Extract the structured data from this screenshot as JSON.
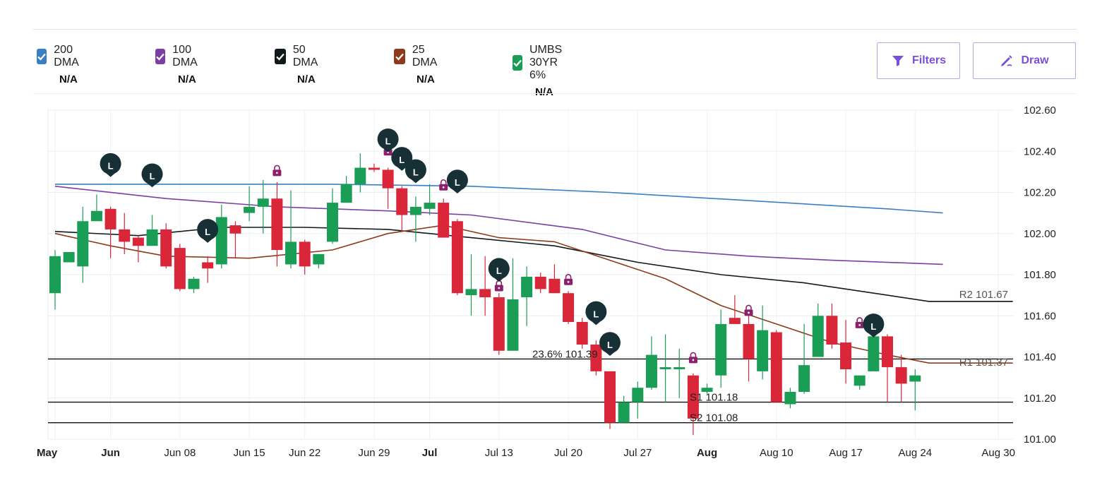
{
  "legend": [
    {
      "label": "200 DMA",
      "value": "N/A",
      "color": "#3a7fc1"
    },
    {
      "label": "100 DMA",
      "value": "N/A",
      "color": "#7b3fa4"
    },
    {
      "label": "50 DMA",
      "value": "N/A",
      "color": "#111a1a"
    },
    {
      "label": "25 DMA",
      "value": "N/A",
      "color": "#8f3a1b"
    },
    {
      "label": "UMBS 30YR 6%",
      "value": "N/A",
      "color": "#1a9e55"
    }
  ],
  "buttons": {
    "filters": "Filters",
    "draw": "Draw"
  },
  "chart_data": {
    "type": "candlestick",
    "ylim": [
      101.0,
      102.6
    ],
    "y_ticks": [
      "102.60",
      "102.40",
      "102.20",
      "102.00",
      "101.80",
      "101.60",
      "101.40",
      "101.20",
      "101.00"
    ],
    "x_labels": [
      {
        "text": "May",
        "bold": true,
        "idx": 0
      },
      {
        "text": "Jun",
        "bold": true,
        "idx": 4
      },
      {
        "text": "Jun 08",
        "bold": false,
        "idx": 9
      },
      {
        "text": "Jun 15",
        "bold": false,
        "idx": 14
      },
      {
        "text": "Jun 22",
        "bold": false,
        "idx": 18
      },
      {
        "text": "Jun 29",
        "bold": false,
        "idx": 23
      },
      {
        "text": "Jul",
        "bold": true,
        "idx": 27
      },
      {
        "text": "Jul 13",
        "bold": false,
        "idx": 32
      },
      {
        "text": "Jul 20",
        "bold": false,
        "idx": 37
      },
      {
        "text": "Jul 27",
        "bold": false,
        "idx": 42
      },
      {
        "text": "Aug",
        "bold": true,
        "idx": 47
      },
      {
        "text": "Aug 10",
        "bold": false,
        "idx": 52
      },
      {
        "text": "Aug 17",
        "bold": false,
        "idx": 57
      },
      {
        "text": "Aug 24",
        "bold": false,
        "idx": 62
      },
      {
        "text": "Aug 30",
        "bold": false,
        "idx": 68
      }
    ],
    "candles": [
      {
        "o": 101.71,
        "h": 101.92,
        "l": 101.63,
        "c": 101.89
      },
      {
        "o": 101.86,
        "h": 101.91,
        "l": 101.86,
        "c": 101.91
      },
      {
        "o": 101.84,
        "h": 102.13,
        "l": 101.76,
        "c": 102.06
      },
      {
        "o": 102.06,
        "h": 102.19,
        "l": 102.06,
        "c": 102.11
      },
      {
        "o": 102.12,
        "h": 102.13,
        "l": 101.88,
        "c": 102.02
      },
      {
        "o": 102.02,
        "h": 102.1,
        "l": 101.9,
        "c": 101.96
      },
      {
        "o": 101.98,
        "h": 101.99,
        "l": 101.86,
        "c": 101.94
      },
      {
        "o": 101.94,
        "h": 102.09,
        "l": 101.94,
        "c": 102.02
      },
      {
        "o": 102.02,
        "h": 102.05,
        "l": 101.83,
        "c": 101.84
      },
      {
        "o": 101.93,
        "h": 101.95,
        "l": 101.72,
        "c": 101.73
      },
      {
        "o": 101.73,
        "h": 101.79,
        "l": 101.71,
        "c": 101.78
      },
      {
        "o": 101.86,
        "h": 101.89,
        "l": 101.76,
        "c": 101.83
      },
      {
        "o": 101.85,
        "h": 102.14,
        "l": 101.83,
        "c": 102.08
      },
      {
        "o": 102.04,
        "h": 102.06,
        "l": 101.88,
        "c": 102.0
      },
      {
        "o": 102.1,
        "h": 102.23,
        "l": 102.06,
        "c": 102.13
      },
      {
        "o": 102.13,
        "h": 102.26,
        "l": 102.0,
        "c": 102.17
      },
      {
        "o": 102.17,
        "h": 102.25,
        "l": 101.84,
        "c": 101.92
      },
      {
        "o": 101.85,
        "h": 102.21,
        "l": 101.83,
        "c": 101.96
      },
      {
        "o": 101.96,
        "h": 101.97,
        "l": 101.8,
        "c": 101.84
      },
      {
        "o": 101.85,
        "h": 101.9,
        "l": 101.83,
        "c": 101.9
      },
      {
        "o": 101.96,
        "h": 102.22,
        "l": 101.95,
        "c": 102.15
      },
      {
        "o": 102.15,
        "h": 102.28,
        "l": 102.15,
        "c": 102.24
      },
      {
        "o": 102.24,
        "h": 102.39,
        "l": 102.2,
        "c": 102.32
      },
      {
        "o": 102.32,
        "h": 102.34,
        "l": 102.3,
        "c": 102.31
      },
      {
        "o": 102.31,
        "h": 102.32,
        "l": 102.12,
        "c": 102.22
      },
      {
        "o": 102.22,
        "h": 102.23,
        "l": 102.01,
        "c": 102.09
      },
      {
        "o": 102.09,
        "h": 102.18,
        "l": 101.96,
        "c": 102.13
      },
      {
        "o": 102.12,
        "h": 102.24,
        "l": 102.09,
        "c": 102.15
      },
      {
        "o": 102.15,
        "h": 102.17,
        "l": 101.99,
        "c": 101.98
      },
      {
        "o": 102.06,
        "h": 102.07,
        "l": 101.7,
        "c": 101.71
      },
      {
        "o": 101.7,
        "h": 101.9,
        "l": 101.6,
        "c": 101.73
      },
      {
        "o": 101.73,
        "h": 101.89,
        "l": 101.6,
        "c": 101.69
      },
      {
        "o": 101.69,
        "h": 101.71,
        "l": 101.41,
        "c": 101.43
      },
      {
        "o": 101.43,
        "h": 101.88,
        "l": 101.43,
        "c": 101.68
      },
      {
        "o": 101.69,
        "h": 101.84,
        "l": 101.55,
        "c": 101.79
      },
      {
        "o": 101.79,
        "h": 101.81,
        "l": 101.71,
        "c": 101.73
      },
      {
        "o": 101.78,
        "h": 101.85,
        "l": 101.71,
        "c": 101.71
      },
      {
        "o": 101.71,
        "h": 101.72,
        "l": 101.56,
        "c": 101.57
      },
      {
        "o": 101.57,
        "h": 101.59,
        "l": 101.44,
        "c": 101.46
      },
      {
        "o": 101.46,
        "h": 101.48,
        "l": 101.31,
        "c": 101.33
      },
      {
        "o": 101.33,
        "h": 101.33,
        "l": 101.05,
        "c": 101.08
      },
      {
        "o": 101.08,
        "h": 101.21,
        "l": 101.08,
        "c": 101.18
      },
      {
        "o": 101.18,
        "h": 101.28,
        "l": 101.1,
        "c": 101.25
      },
      {
        "o": 101.25,
        "h": 101.5,
        "l": 101.24,
        "c": 101.41
      },
      {
        "o": 101.34,
        "h": 101.51,
        "l": 101.18,
        "c": 101.35
      },
      {
        "o": 101.34,
        "h": 101.44,
        "l": 101.2,
        "c": 101.35
      },
      {
        "o": 101.31,
        "h": 101.32,
        "l": 101.02,
        "c": 101.1
      },
      {
        "o": 101.23,
        "h": 101.27,
        "l": 101.22,
        "c": 101.25
      },
      {
        "o": 101.31,
        "h": 101.63,
        "l": 101.25,
        "c": 101.56
      },
      {
        "o": 101.59,
        "h": 101.7,
        "l": 101.56,
        "c": 101.56
      },
      {
        "o": 101.56,
        "h": 101.62,
        "l": 101.28,
        "c": 101.39
      },
      {
        "o": 101.33,
        "h": 101.65,
        "l": 101.29,
        "c": 101.53
      },
      {
        "o": 101.52,
        "h": 101.53,
        "l": 101.18,
        "c": 101.18
      },
      {
        "o": 101.17,
        "h": 101.25,
        "l": 101.15,
        "c": 101.23
      },
      {
        "o": 101.23,
        "h": 101.56,
        "l": 101.22,
        "c": 101.36
      },
      {
        "o": 101.4,
        "h": 101.66,
        "l": 101.4,
        "c": 101.6
      },
      {
        "o": 101.6,
        "h": 101.66,
        "l": 101.44,
        "c": 101.46
      },
      {
        "o": 101.47,
        "h": 101.58,
        "l": 101.27,
        "c": 101.34
      },
      {
        "o": 101.26,
        "h": 101.31,
        "l": 101.24,
        "c": 101.31
      },
      {
        "o": 101.33,
        "h": 101.57,
        "l": 101.33,
        "c": 101.5
      },
      {
        "o": 101.5,
        "h": 101.51,
        "l": 101.18,
        "c": 101.35
      },
      {
        "o": 101.35,
        "h": 101.41,
        "l": 101.18,
        "c": 101.27
      },
      {
        "o": 101.28,
        "h": 101.34,
        "l": 101.14,
        "c": 101.31
      }
    ],
    "series": [
      {
        "name": "200 DMA",
        "color": "#3a7fc1",
        "points": [
          [
            0,
            102.24
          ],
          [
            10,
            102.24
          ],
          [
            20,
            102.24
          ],
          [
            30,
            102.23
          ],
          [
            40,
            102.2
          ],
          [
            50,
            102.16
          ],
          [
            60,
            102.12
          ],
          [
            64,
            102.1
          ]
        ]
      },
      {
        "name": "100 DMA",
        "color": "#7b3fa4",
        "points": [
          [
            0,
            102.23
          ],
          [
            8,
            102.17
          ],
          [
            16,
            102.13
          ],
          [
            24,
            102.11
          ],
          [
            30,
            102.09
          ],
          [
            38,
            102.02
          ],
          [
            44,
            101.92
          ],
          [
            50,
            101.89
          ],
          [
            56,
            101.87
          ],
          [
            64,
            101.85
          ]
        ]
      },
      {
        "name": "50 DMA",
        "color": "#111a1a",
        "points": [
          [
            0,
            102.01
          ],
          [
            6,
            101.99
          ],
          [
            12,
            102.03
          ],
          [
            18,
            102.03
          ],
          [
            24,
            102.02
          ],
          [
            30,
            101.98
          ],
          [
            36,
            101.94
          ],
          [
            42,
            101.86
          ],
          [
            48,
            101.8
          ],
          [
            54,
            101.76
          ],
          [
            60,
            101.7
          ],
          [
            63,
            101.67
          ],
          [
            69,
            101.67
          ]
        ]
      },
      {
        "name": "25 DMA",
        "color": "#8f3a1b",
        "points": [
          [
            0,
            102.0
          ],
          [
            4,
            101.94
          ],
          [
            8,
            101.89
          ],
          [
            14,
            101.88
          ],
          [
            20,
            101.92
          ],
          [
            24,
            102.0
          ],
          [
            28,
            102.04
          ],
          [
            32,
            101.98
          ],
          [
            36,
            101.96
          ],
          [
            40,
            101.87
          ],
          [
            44,
            101.78
          ],
          [
            48,
            101.65
          ],
          [
            52,
            101.56
          ],
          [
            56,
            101.47
          ],
          [
            60,
            101.41
          ],
          [
            63,
            101.37
          ],
          [
            69,
            101.37
          ]
        ]
      }
    ],
    "levels": [
      {
        "label": "R2 101.67",
        "value": 101.67,
        "from": 63,
        "to": 69,
        "color": "#333"
      },
      {
        "label": "R1 101.37",
        "value": 101.37,
        "from": 63,
        "to": 69,
        "color": "#8f3a1b"
      },
      {
        "label": "23.6% 101.39",
        "value": 101.39,
        "color": "#111"
      },
      {
        "label": "S1 101.18",
        "value": 101.18,
        "color": "#111"
      },
      {
        "label": "S2 101.08",
        "value": 101.08,
        "color": "#111"
      }
    ],
    "markers_L": [
      [
        4,
        102.33
      ],
      [
        7,
        102.28
      ],
      [
        11,
        102.01
      ],
      [
        24,
        102.45
      ],
      [
        25,
        102.36
      ],
      [
        26,
        102.3
      ],
      [
        29,
        102.25
      ],
      [
        32,
        101.82
      ],
      [
        39,
        101.61
      ],
      [
        40,
        101.46
      ],
      [
        59,
        101.55
      ]
    ],
    "lock_marks": [
      [
        16,
        102.3
      ],
      [
        24,
        102.4
      ],
      [
        28,
        102.23
      ],
      [
        32,
        101.74
      ],
      [
        37,
        101.77
      ],
      [
        46,
        101.39
      ],
      [
        50,
        101.62
      ],
      [
        58,
        101.56
      ]
    ],
    "marker_label": "L",
    "grid": true,
    "up_color": "#1a9e55",
    "down_color": "#d92638"
  }
}
